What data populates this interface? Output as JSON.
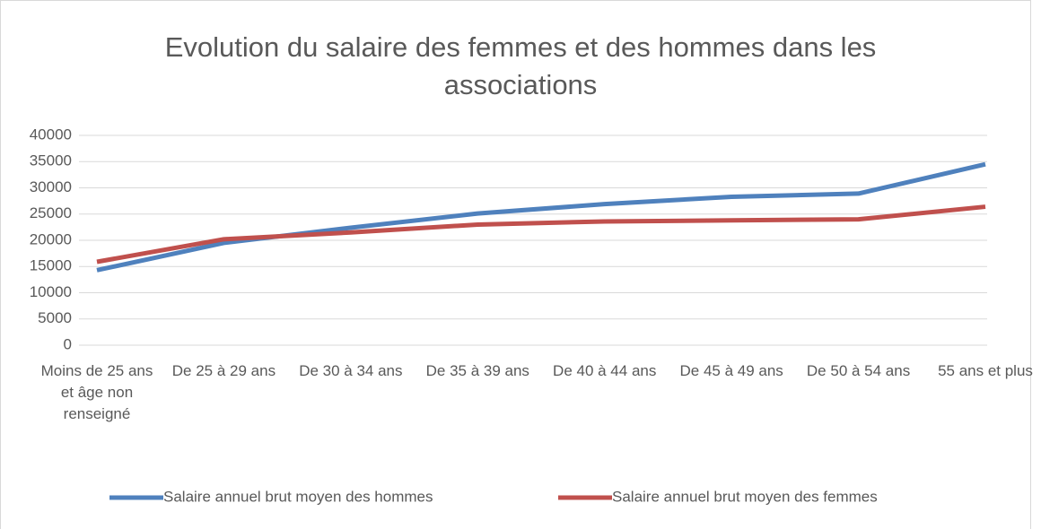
{
  "chart_data": {
    "type": "line",
    "title": "Evolution du salaire des femmes et des hommes dans les associations",
    "categories": [
      "Moins de 25 ans et âge non renseigné",
      "De 25 à 29 ans",
      "De 30 à 34 ans",
      "De 35 à 39 ans",
      "De 40 à 44 ans",
      "De 45 à 49 ans",
      "De 50 à 54 ans",
      "55 ans et plus"
    ],
    "series": [
      {
        "name": "Salaire annuel brut moyen des hommes",
        "color": "#4f81bd",
        "values": [
          14300,
          19500,
          22400,
          25100,
          26900,
          28300,
          28900,
          34500
        ]
      },
      {
        "name": "Salaire annuel brut moyen des femmes",
        "color": "#c0504d",
        "values": [
          15900,
          20200,
          21500,
          23000,
          23600,
          23800,
          24000,
          26400
        ]
      }
    ],
    "ylim": [
      0,
      40000
    ],
    "yticks": [
      0,
      5000,
      10000,
      15000,
      20000,
      25000,
      30000,
      35000,
      40000
    ],
    "grid": true,
    "legend": "bottom"
  }
}
